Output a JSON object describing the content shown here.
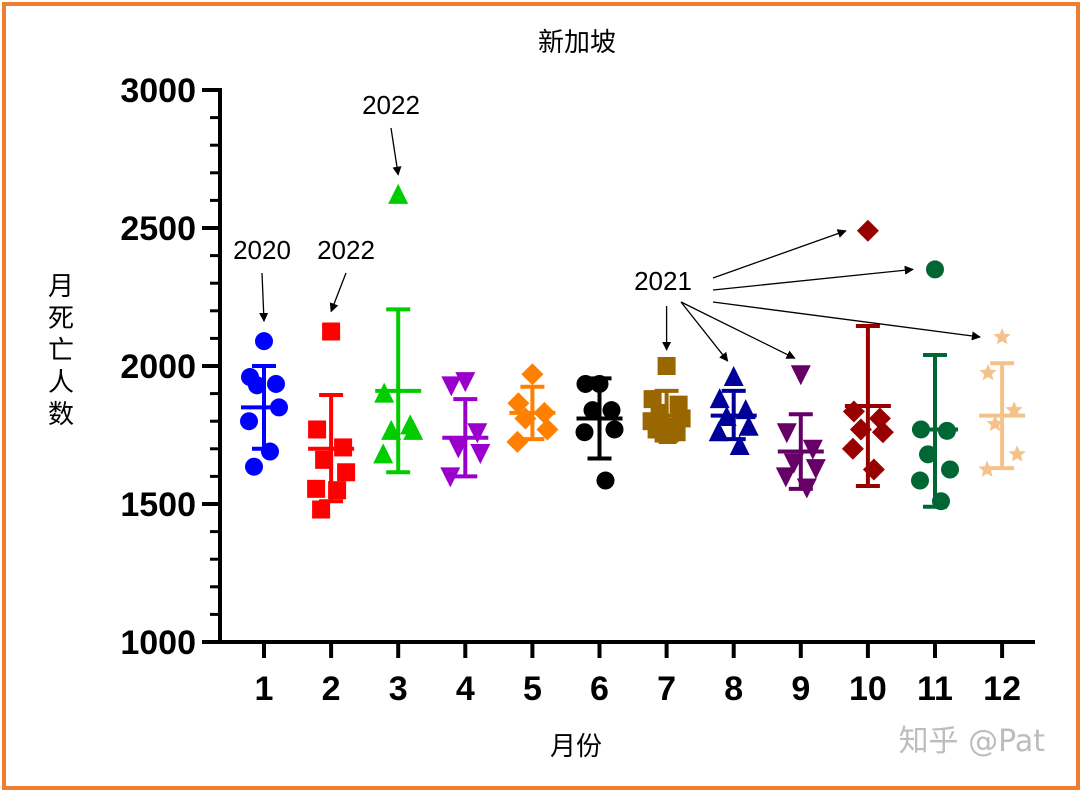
{
  "chart_data": {
    "type": "scatter",
    "title": "新加坡",
    "xlabel": "月份",
    "ylabel": "月死亡人数",
    "ylim": [
      1000,
      3000
    ],
    "yticks": [
      1000,
      1500,
      2000,
      2500,
      3000
    ],
    "categories": [
      "1",
      "2",
      "3",
      "4",
      "5",
      "6",
      "7",
      "8",
      "9",
      "10",
      "11",
      "12"
    ],
    "series": [
      {
        "month": "1",
        "color": "#0000FF",
        "marker": "circle",
        "points": [
          2090,
          1960,
          1935,
          1930,
          1850,
          1800,
          1690,
          1635
        ],
        "mean": 1850,
        "sd_low": 1700,
        "sd_high": 2000
      },
      {
        "month": "2",
        "color": "#FF0000",
        "marker": "square",
        "points": [
          2125,
          1770,
          1705,
          1660,
          1615,
          1555,
          1550,
          1480
        ],
        "mean": 1700,
        "sd_low": 1510,
        "sd_high": 1895
      },
      {
        "month": "3",
        "color": "#00CC00",
        "marker": "triangle-up",
        "points": [
          2620,
          1900,
          1785,
          1765,
          1765,
          1680
        ],
        "mean": 1910,
        "sd_low": 1615,
        "sd_high": 2205
      },
      {
        "month": "4",
        "color": "#9900CC",
        "marker": "triangle-down",
        "points": [
          1945,
          1930,
          1760,
          1705,
          1685,
          1600
        ],
        "mean": 1740,
        "sd_low": 1600,
        "sd_high": 1880
      },
      {
        "month": "5",
        "color": "#FF8000",
        "marker": "diamond",
        "points": [
          1970,
          1865,
          1830,
          1810,
          1770,
          1725
        ],
        "mean": 1830,
        "sd_low": 1735,
        "sd_high": 1925
      },
      {
        "month": "6",
        "color": "#000000",
        "marker": "circle",
        "points": [
          1935,
          1935,
          1840,
          1840,
          1770,
          1760,
          1585
        ],
        "mean": 1810,
        "sd_low": 1665,
        "sd_high": 1955
      },
      {
        "month": "7",
        "color": "#996600",
        "marker": "square",
        "points": [
          2000,
          1880,
          1860,
          1830,
          1810,
          1800,
          1780,
          1770,
          1760,
          1750
        ],
        "mean": 1820,
        "sd_low": 1730,
        "sd_high": 1910
      },
      {
        "month": "8",
        "color": "#000099",
        "marker": "triangle-up",
        "points": [
          1960,
          1880,
          1840,
          1815,
          1780,
          1760,
          1710
        ],
        "mean": 1820,
        "sd_low": 1735,
        "sd_high": 1910
      },
      {
        "month": "9",
        "color": "#660066",
        "marker": "triangle-down",
        "points": [
          1970,
          1760,
          1700,
          1650,
          1630,
          1600,
          1560
        ],
        "mean": 1690,
        "sd_low": 1555,
        "sd_high": 1825
      },
      {
        "month": "10",
        "color": "#990000",
        "marker": "diamond",
        "points": [
          2490,
          1835,
          1810,
          1770,
          1760,
          1700,
          1625
        ],
        "mean": 1855,
        "sd_low": 1565,
        "sd_high": 2145
      },
      {
        "month": "11",
        "color": "#006633",
        "marker": "circle",
        "points": [
          2350,
          1770,
          1765,
          1680,
          1625,
          1585,
          1510
        ],
        "mean": 1770,
        "sd_low": 1490,
        "sd_high": 2040
      },
      {
        "month": "12",
        "color": "#F4C28A",
        "marker": "star",
        "points": [
          2105,
          1975,
          1840,
          1790,
          1680,
          1625
        ],
        "mean": 1820,
        "sd_low": 1630,
        "sd_high": 2010
      }
    ],
    "annotations": [
      {
        "text": "2020",
        "targets": [
          {
            "month": "1",
            "value": 2090
          }
        ]
      },
      {
        "text": "2022",
        "targets": [
          {
            "month": "2",
            "value": 2125
          }
        ]
      },
      {
        "text": "2022",
        "targets": [
          {
            "month": "3",
            "value": 2620
          }
        ]
      },
      {
        "text": "2021",
        "targets": [
          {
            "month": "7",
            "value": 2000
          },
          {
            "month": "8",
            "value": 1960
          },
          {
            "month": "9",
            "value": 1970
          },
          {
            "month": "10",
            "value": 2490
          },
          {
            "month": "11",
            "value": 2350
          },
          {
            "month": "12",
            "value": 2105
          }
        ]
      }
    ]
  },
  "watermark": "知乎 @Pat",
  "frame_color": "#ED7D31"
}
